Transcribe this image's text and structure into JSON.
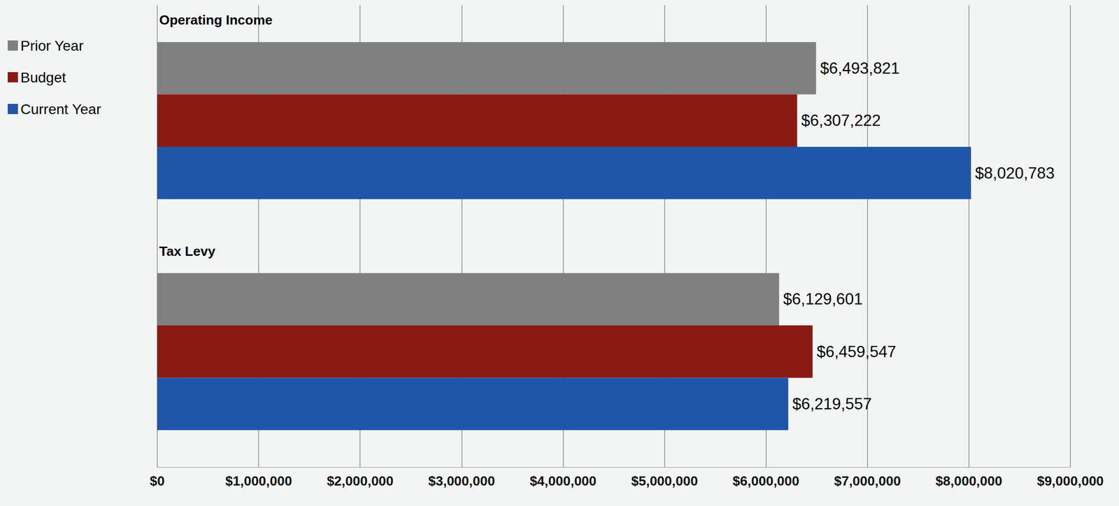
{
  "chart_data": {
    "type": "bar",
    "orientation": "horizontal",
    "categories": [
      "Operating Income",
      "Tax Levy"
    ],
    "series": [
      {
        "name": "Prior Year",
        "color": "#808080",
        "values": [
          6493821,
          6129601
        ],
        "value_labels": [
          "$6,493,821",
          "$6,129,601"
        ]
      },
      {
        "name": "Budget",
        "color": "#8b1a13",
        "values": [
          6307222,
          6459547
        ],
        "value_labels": [
          "$6,307,222",
          "$6,459,547"
        ]
      },
      {
        "name": "Current Year",
        "color": "#1f56aa",
        "values": [
          8020783,
          6219557
        ],
        "value_labels": [
          "$8,020,783",
          "$6,219,557"
        ]
      }
    ],
    "xlim": [
      0,
      9000000
    ],
    "xticks": [
      {
        "value": 0,
        "label": "$0"
      },
      {
        "value": 1000000,
        "label": "$1,000,000"
      },
      {
        "value": 2000000,
        "label": "$2,000,000"
      },
      {
        "value": 3000000,
        "label": "$3,000,000"
      },
      {
        "value": 4000000,
        "label": "$4,000,000"
      },
      {
        "value": 5000000,
        "label": "$5,000,000"
      },
      {
        "value": 6000000,
        "label": "$6,000,000"
      },
      {
        "value": 7000000,
        "label": "$7,000,000"
      },
      {
        "value": 8000000,
        "label": "$8,000,000"
      },
      {
        "value": 9000000,
        "label": "$9,000,000"
      }
    ],
    "grid": true,
    "legend": "upper left",
    "data_labels": true
  }
}
